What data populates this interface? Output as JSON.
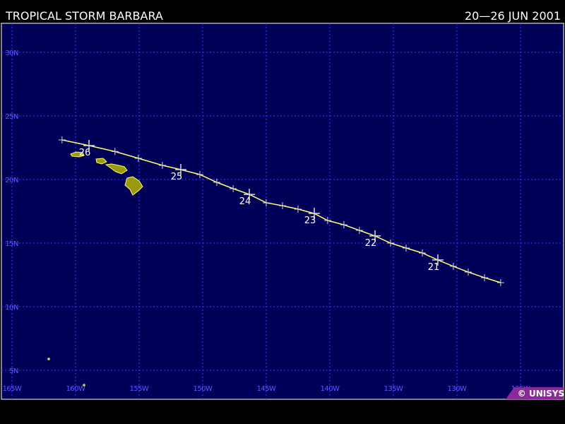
{
  "header": {
    "title": "TROPICAL STORM BARBARA",
    "dates": "20—26 JUN 2001"
  },
  "map": {
    "xlim": [
      -165.83,
      -121.61
    ],
    "ylim": [
      2.72,
      32.28
    ],
    "xticks": [
      {
        "value": -165,
        "label": "165W"
      },
      {
        "value": -160,
        "label": "160W"
      },
      {
        "value": -155,
        "label": "155W"
      },
      {
        "value": -150,
        "label": "150W"
      },
      {
        "value": -145,
        "label": "145W"
      },
      {
        "value": -140,
        "label": "140W"
      },
      {
        "value": -135,
        "label": "135W"
      },
      {
        "value": -130,
        "label": "130W"
      },
      {
        "value": -125,
        "label": "125W"
      }
    ],
    "yticks": [
      {
        "value": 5,
        "label": "5N"
      },
      {
        "value": 10,
        "label": "10N"
      },
      {
        "value": 15,
        "label": "15N"
      },
      {
        "value": 20,
        "label": "20N"
      },
      {
        "value": 25,
        "label": "25N"
      },
      {
        "value": 30,
        "label": "30N"
      }
    ],
    "grid": true,
    "track": {
      "color": "#ffff70",
      "lon": [
        -161.06,
        -158.94,
        -156.9,
        -155.06,
        -153.17,
        -151.72,
        -150.22,
        -148.89,
        -147.6,
        -146.33,
        -145.0,
        -143.72,
        -142.5,
        -141.22,
        -140.17,
        -138.89,
        -137.67,
        -136.44,
        -135.22,
        -134.0,
        -132.72,
        -131.5,
        -130.28,
        -129.11,
        -127.83,
        -126.56
      ],
      "lat": [
        23.11,
        22.67,
        22.2,
        21.67,
        21.11,
        20.78,
        20.39,
        19.78,
        19.28,
        18.83,
        18.17,
        17.94,
        17.67,
        17.33,
        16.78,
        16.44,
        16.0,
        15.56,
        15.0,
        14.61,
        14.22,
        13.67,
        13.17,
        12.72,
        12.28,
        11.89
      ]
    },
    "days": {
      "labels": [
        "26",
        "25",
        "24",
        "23",
        "22",
        "21"
      ],
      "lon": [
        -158.94,
        -151.72,
        -146.33,
        -141.22,
        -136.44,
        -131.5
      ],
      "lat": [
        22.67,
        20.78,
        18.83,
        17.33,
        15.56,
        13.67
      ]
    }
  },
  "footer": {
    "copyright": "© UNISYS"
  }
}
